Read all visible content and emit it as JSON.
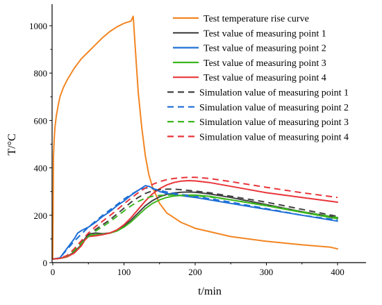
{
  "chart_data": {
    "type": "line",
    "xlabel": "t/min",
    "ylabel": "T/°C",
    "xlim": [
      0,
      420
    ],
    "ylim": [
      0,
      1080
    ],
    "xticks": [
      0,
      100,
      200,
      300,
      400
    ],
    "yticks": [
      0,
      200,
      400,
      600,
      800,
      1000
    ],
    "grid": false,
    "legend_position": "top-right",
    "series": [
      {
        "name": "Test temperature rise curve",
        "color": "#f28522",
        "dash": "solid",
        "x": [
          0,
          1,
          2,
          3,
          5,
          8,
          10,
          15,
          20,
          30,
          40,
          50,
          60,
          70,
          80,
          90,
          100,
          105,
          110,
          113,
          116,
          120,
          125,
          130,
          135,
          140,
          150,
          160,
          180,
          200,
          250,
          300,
          350,
          390,
          400
        ],
        "y": [
          15,
          450,
          520,
          570,
          620,
          670,
          700,
          740,
          770,
          820,
          860,
          890,
          920,
          950,
          975,
          995,
          1010,
          1015,
          1020,
          1040,
          900,
          720,
          570,
          450,
          370,
          320,
          250,
          210,
          170,
          145,
          110,
          90,
          75,
          65,
          58
        ]
      },
      {
        "name": "Test value of measuring point 1",
        "color": "#404040",
        "dash": "solid",
        "x": [
          0,
          10,
          20,
          30,
          40,
          45,
          50,
          60,
          70,
          80,
          90,
          100,
          110,
          120,
          130,
          140,
          150,
          160,
          170,
          180,
          190,
          200,
          220,
          250,
          300,
          350,
          400
        ],
        "y": [
          15,
          18,
          25,
          45,
          75,
          100,
          120,
          125,
          122,
          125,
          135,
          155,
          180,
          210,
          240,
          262,
          278,
          288,
          294,
          297,
          298,
          297,
          290,
          275,
          245,
          215,
          190
        ]
      },
      {
        "name": "Test value of measuring point 2",
        "color": "#1f6fd6",
        "dash": "solid",
        "x": [
          0,
          10,
          20,
          30,
          35,
          40,
          50,
          60,
          70,
          80,
          90,
          100,
          110,
          120,
          130,
          135,
          140,
          150,
          160,
          170,
          180,
          200,
          250,
          300,
          350,
          400
        ],
        "y": [
          15,
          20,
          60,
          100,
          125,
          135,
          150,
          170,
          195,
          215,
          240,
          260,
          285,
          305,
          325,
          322,
          315,
          300,
          292,
          287,
          283,
          275,
          250,
          225,
          200,
          175
        ]
      },
      {
        "name": "Test value of measuring point 3",
        "color": "#3cb61e",
        "dash": "solid",
        "x": [
          0,
          10,
          20,
          30,
          40,
          45,
          50,
          60,
          70,
          80,
          90,
          100,
          110,
          120,
          130,
          140,
          150,
          160,
          170,
          180,
          190,
          200,
          220,
          250,
          300,
          350,
          400
        ],
        "y": [
          15,
          18,
          24,
          42,
          72,
          95,
          115,
          118,
          120,
          124,
          133,
          150,
          172,
          200,
          228,
          250,
          265,
          275,
          281,
          284,
          285,
          285,
          280,
          265,
          240,
          212,
          185
        ]
      },
      {
        "name": "Test value of measuring point 4",
        "color": "#e8353a",
        "dash": "solid",
        "x": [
          0,
          10,
          20,
          30,
          40,
          45,
          50,
          60,
          70,
          80,
          90,
          100,
          110,
          120,
          130,
          140,
          150,
          160,
          170,
          180,
          190,
          200,
          220,
          250,
          300,
          350,
          400
        ],
        "y": [
          15,
          18,
          24,
          40,
          70,
          95,
          110,
          113,
          118,
          125,
          138,
          160,
          190,
          225,
          260,
          290,
          312,
          328,
          338,
          344,
          346,
          345,
          338,
          322,
          295,
          275,
          255
        ]
      },
      {
        "name": "Simulation value of measuring point 1",
        "color": "#404040",
        "dash": "dashed",
        "x": [
          0,
          10,
          20,
          30,
          40,
          50,
          60,
          70,
          80,
          90,
          100,
          110,
          120,
          130,
          140,
          150,
          160,
          170,
          180,
          190,
          200,
          220,
          250,
          300,
          350,
          400
        ],
        "y": [
          15,
          18,
          30,
          55,
          85,
          115,
          140,
          160,
          180,
          205,
          230,
          255,
          275,
          292,
          303,
          308,
          310,
          310,
          308,
          305,
          302,
          295,
          280,
          255,
          225,
          195
        ]
      },
      {
        "name": "Simulation value of measuring point 2",
        "color": "#1f6fd6",
        "dash": "dashed",
        "x": [
          0,
          10,
          20,
          30,
          40,
          50,
          60,
          70,
          80,
          90,
          100,
          110,
          120,
          130,
          140,
          150,
          160,
          170,
          180,
          200,
          250,
          300,
          350,
          400
        ],
        "y": [
          15,
          20,
          55,
          90,
          120,
          150,
          175,
          200,
          222,
          245,
          268,
          288,
          305,
          315,
          312,
          305,
          298,
          292,
          288,
          280,
          255,
          228,
          200,
          180
        ]
      },
      {
        "name": "Simulation value of measuring point 3",
        "color": "#3cb61e",
        "dash": "dashed",
        "x": [
          0,
          10,
          20,
          30,
          40,
          50,
          60,
          70,
          80,
          90,
          100,
          110,
          120,
          130,
          140,
          150,
          160,
          170,
          180,
          190,
          200,
          220,
          250,
          300,
          350,
          400
        ],
        "y": [
          15,
          18,
          28,
          52,
          82,
          110,
          133,
          152,
          172,
          195,
          218,
          240,
          258,
          272,
          280,
          284,
          285,
          285,
          284,
          283,
          282,
          277,
          265,
          242,
          215,
          190
        ]
      },
      {
        "name": "Simulation value of measuring point 4",
        "color": "#e8353a",
        "dash": "dashed",
        "x": [
          0,
          10,
          20,
          30,
          40,
          50,
          60,
          70,
          80,
          90,
          100,
          110,
          120,
          130,
          140,
          150,
          160,
          170,
          180,
          190,
          200,
          220,
          250,
          300,
          350,
          400
        ],
        "y": [
          15,
          18,
          30,
          58,
          92,
          125,
          152,
          175,
          198,
          222,
          248,
          272,
          295,
          315,
          330,
          342,
          350,
          355,
          358,
          360,
          360,
          355,
          342,
          318,
          295,
          275
        ]
      }
    ]
  }
}
